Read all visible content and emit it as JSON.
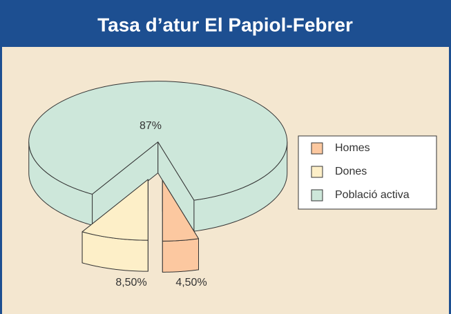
{
  "chart_data": {
    "type": "pie3d",
    "title": "Tasa d’atur El Papiol-Febrer",
    "categories": [
      "Homes",
      "Dones",
      "Població activa"
    ],
    "values": [
      4.5,
      8.5,
      87
    ],
    "value_labels": [
      "4,50%",
      "8,50%",
      "87%"
    ],
    "colors": [
      "#fcc8a0",
      "#fdefc8",
      "#cde7da"
    ],
    "legend": "right"
  }
}
